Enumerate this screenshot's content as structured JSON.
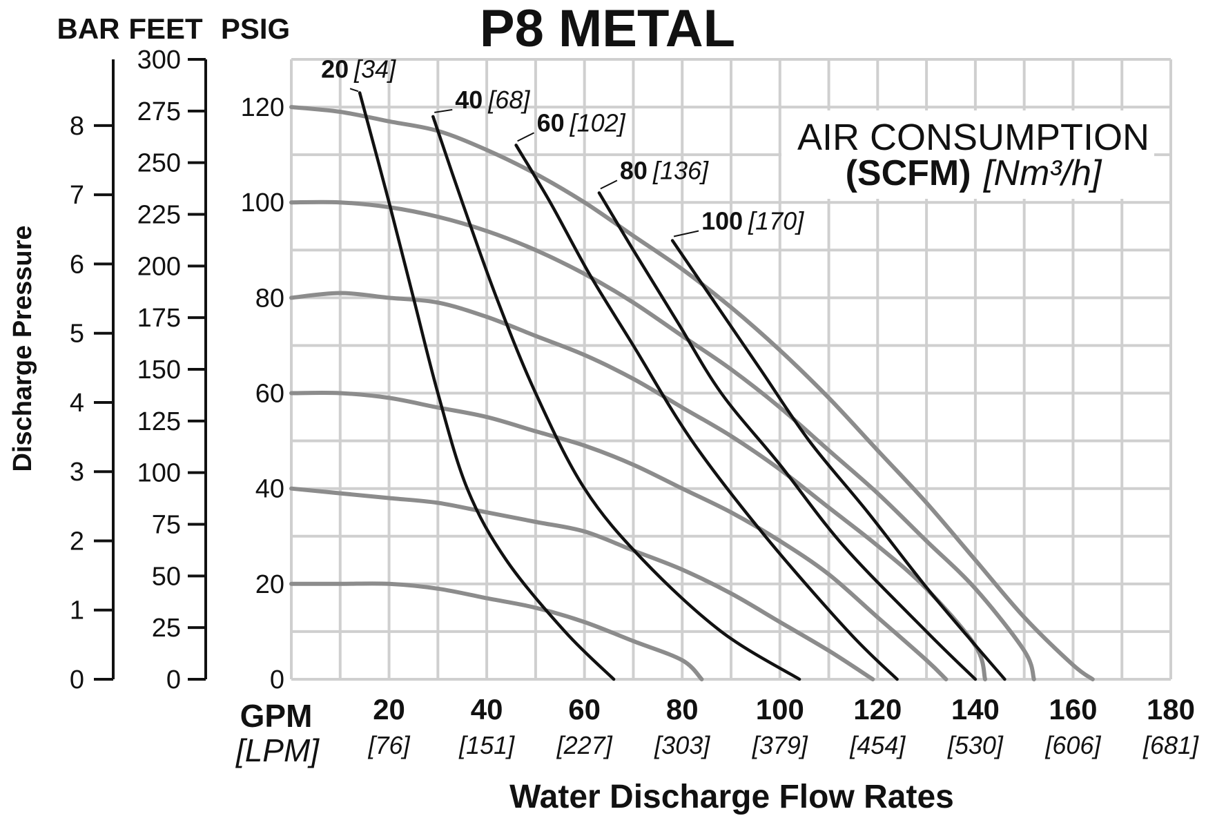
{
  "chart_data": {
    "type": "line",
    "title": "P8 METAL",
    "xlabel": "Water Discharge Flow Rates",
    "ylabel": "Discharge Pressure",
    "x_unit": "GPM",
    "x_unit_alt": "[LPM]",
    "xlim": [
      0,
      180
    ],
    "x_ticks": [
      {
        "value": 20,
        "label": "20",
        "alt": "[76]"
      },
      {
        "value": 40,
        "label": "40",
        "alt": "[151]"
      },
      {
        "value": 60,
        "label": "60",
        "alt": "[227]"
      },
      {
        "value": 80,
        "label": "80",
        "alt": "[303]"
      },
      {
        "value": 100,
        "label": "100",
        "alt": "[379]"
      },
      {
        "value": 120,
        "label": "120",
        "alt": "[454]"
      },
      {
        "value": 140,
        "label": "140",
        "alt": "[530]"
      },
      {
        "value": 160,
        "label": "160",
        "alt": "[606]"
      },
      {
        "value": 180,
        "label": "180",
        "alt": "[681]"
      }
    ],
    "ylim": [
      0,
      130
    ],
    "psig_ticks": [
      "0",
      "20",
      "40",
      "60",
      "80",
      "100",
      "120"
    ],
    "feet_ticks": [
      "0",
      "25",
      "50",
      "75",
      "100",
      "125",
      "150",
      "175",
      "200",
      "225",
      "250",
      "275",
      "300"
    ],
    "bar_ticks": [
      "0",
      "1",
      "2",
      "3",
      "4",
      "5",
      "6",
      "7",
      "8"
    ],
    "scale_headers": {
      "bar": "BAR",
      "feet": "FEET",
      "psig": "PSIG"
    },
    "grid": true,
    "air_consumption_title": "AIR CONSUMPTION",
    "air_consumption_unit": "(SCFM)",
    "air_consumption_unit_alt": "[Nm³/h]",
    "performance_curves": [
      {
        "name": "120 psig",
        "air_psig": 120,
        "points": [
          [
            0,
            120
          ],
          [
            10,
            119
          ],
          [
            20,
            117
          ],
          [
            30,
            115
          ],
          [
            40,
            111
          ],
          [
            50,
            106
          ],
          [
            60,
            100
          ],
          [
            70,
            93
          ],
          [
            80,
            86
          ],
          [
            90,
            78
          ],
          [
            100,
            69
          ],
          [
            110,
            59
          ],
          [
            120,
            48
          ],
          [
            130,
            37
          ],
          [
            140,
            25
          ],
          [
            150,
            13
          ],
          [
            160,
            3
          ],
          [
            164,
            0
          ]
        ]
      },
      {
        "name": "100 psig",
        "air_psig": 100,
        "points": [
          [
            0,
            100
          ],
          [
            10,
            100
          ],
          [
            20,
            99
          ],
          [
            30,
            97
          ],
          [
            40,
            94
          ],
          [
            50,
            90
          ],
          [
            60,
            85
          ],
          [
            70,
            79
          ],
          [
            80,
            72
          ],
          [
            90,
            65
          ],
          [
            100,
            57
          ],
          [
            110,
            48
          ],
          [
            120,
            39
          ],
          [
            130,
            29
          ],
          [
            140,
            19
          ],
          [
            150,
            6
          ],
          [
            152,
            0
          ]
        ]
      },
      {
        "name": "80 psig",
        "air_psig": 80,
        "points": [
          [
            0,
            80
          ],
          [
            10,
            81
          ],
          [
            20,
            80
          ],
          [
            30,
            79
          ],
          [
            40,
            76
          ],
          [
            50,
            72
          ],
          [
            60,
            68
          ],
          [
            70,
            63
          ],
          [
            80,
            57
          ],
          [
            90,
            51
          ],
          [
            100,
            44
          ],
          [
            110,
            36
          ],
          [
            120,
            28
          ],
          [
            130,
            19
          ],
          [
            140,
            7
          ],
          [
            142,
            0
          ]
        ]
      },
      {
        "name": "60 psig",
        "air_psig": 60,
        "points": [
          [
            0,
            60
          ],
          [
            10,
            60
          ],
          [
            20,
            59
          ],
          [
            30,
            57
          ],
          [
            40,
            55
          ],
          [
            50,
            52
          ],
          [
            60,
            49
          ],
          [
            70,
            45
          ],
          [
            80,
            40
          ],
          [
            90,
            35
          ],
          [
            100,
            29
          ],
          [
            110,
            22
          ],
          [
            120,
            13
          ],
          [
            130,
            4
          ],
          [
            134,
            0
          ]
        ]
      },
      {
        "name": "40 psig",
        "air_psig": 40,
        "points": [
          [
            0,
            40
          ],
          [
            10,
            39
          ],
          [
            20,
            38
          ],
          [
            30,
            37
          ],
          [
            40,
            35
          ],
          [
            50,
            33
          ],
          [
            60,
            31
          ],
          [
            70,
            27
          ],
          [
            80,
            23
          ],
          [
            90,
            18
          ],
          [
            100,
            12
          ],
          [
            110,
            6
          ],
          [
            119,
            0
          ]
        ]
      },
      {
        "name": "20 psig",
        "air_psig": 20,
        "points": [
          [
            0,
            20
          ],
          [
            10,
            20
          ],
          [
            20,
            20
          ],
          [
            30,
            19
          ],
          [
            40,
            17
          ],
          [
            50,
            15
          ],
          [
            60,
            12
          ],
          [
            70,
            8
          ],
          [
            80,
            4
          ],
          [
            84,
            0
          ]
        ]
      }
    ],
    "air_consumption_curves": [
      {
        "scfm": 20,
        "label": "20",
        "label_alt": "[34]",
        "points": [
          [
            14,
            123
          ],
          [
            20,
            100
          ],
          [
            25,
            80
          ],
          [
            30,
            60
          ],
          [
            36,
            40
          ],
          [
            44,
            25
          ],
          [
            56,
            10
          ],
          [
            66,
            0
          ]
        ]
      },
      {
        "scfm": 40,
        "label": "40",
        "label_alt": "[68]",
        "points": [
          [
            29,
            118
          ],
          [
            35,
            100
          ],
          [
            42,
            80
          ],
          [
            50,
            60
          ],
          [
            60,
            40
          ],
          [
            72,
            25
          ],
          [
            88,
            10
          ],
          [
            104,
            0
          ]
        ]
      },
      {
        "scfm": 60,
        "label": "60",
        "label_alt": "[102]",
        "points": [
          [
            46,
            112
          ],
          [
            53,
            100
          ],
          [
            61,
            85
          ],
          [
            70,
            70
          ],
          [
            82,
            50
          ],
          [
            97,
            30
          ],
          [
            114,
            10
          ],
          [
            124,
            0
          ]
        ]
      },
      {
        "scfm": 80,
        "label": "80",
        "label_alt": "[136]",
        "points": [
          [
            63,
            102
          ],
          [
            70,
            90
          ],
          [
            79,
            75
          ],
          [
            88,
            60
          ],
          [
            100,
            45
          ],
          [
            113,
            28
          ],
          [
            130,
            10
          ],
          [
            140,
            0
          ]
        ]
      },
      {
        "scfm": 100,
        "label": "100",
        "label_alt": "[170]",
        "points": [
          [
            78,
            92
          ],
          [
            86,
            80
          ],
          [
            96,
            65
          ],
          [
            106,
            50
          ],
          [
            118,
            35
          ],
          [
            131,
            18
          ],
          [
            146,
            0
          ]
        ]
      }
    ]
  }
}
